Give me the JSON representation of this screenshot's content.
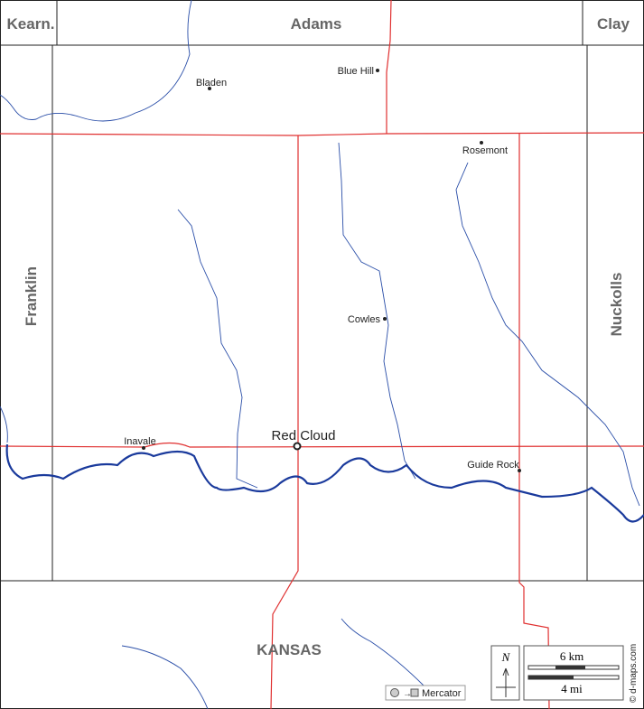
{
  "regions": {
    "kearney": "Kearn.",
    "adams": "Adams",
    "clay": "Clay",
    "franklin": "Franklin",
    "nuckolls": "Nuckolls",
    "kansas": "KANSAS"
  },
  "towns": {
    "bladen": "Bladen",
    "blue_hill": "Blue Hill",
    "rosemont": "Rosemont",
    "cowles": "Cowles",
    "inavale": "Inavale",
    "red_cloud": "Red Cloud",
    "guide_rock": "Guide Rock"
  },
  "scale": {
    "km": "6 km",
    "mi": "4 mi",
    "north": "N"
  },
  "projection": "Mercator",
  "credit": "© d-maps.com"
}
